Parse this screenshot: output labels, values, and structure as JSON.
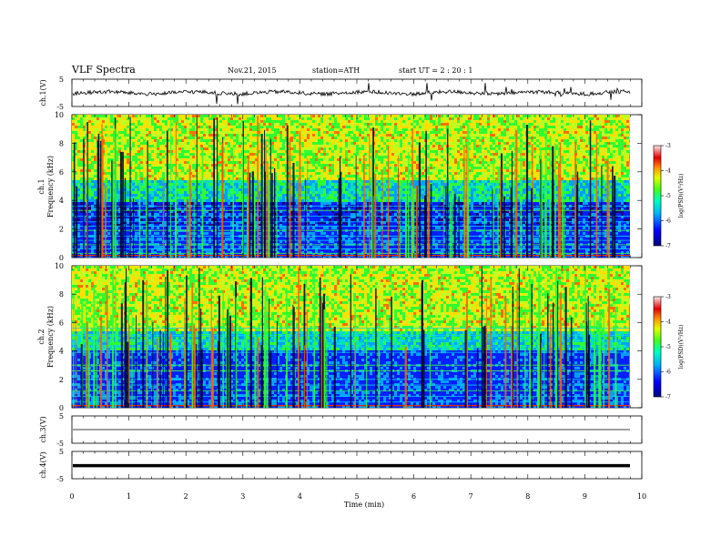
{
  "header": {
    "title": "VLF  Spectra",
    "date": "Nov.21, 2015",
    "station": "station=ATH",
    "start": "start  UT  =   2  : 20 : 1"
  },
  "chart_data": [
    {
      "type": "line",
      "panel": "ch1-waveform",
      "ylabel": "ch.1(V)",
      "ylim": [
        -5,
        5
      ],
      "yticks": [
        "5",
        "-5"
      ],
      "xlim": [
        0,
        10
      ],
      "baseline": 0,
      "color": "#000000"
    },
    {
      "type": "heatmap",
      "panel": "ch1-spectrogram",
      "ylabel": "ch.1",
      "ylabel2": "Frequency  (kHz)",
      "ylim": [
        0,
        10
      ],
      "yticks": [
        "0",
        "2",
        "4",
        "6",
        "8",
        "10"
      ],
      "xlim": [
        0,
        9.8
      ],
      "colorbar": {
        "label": "log(PSD)(V²/Hz)",
        "range": [
          -7,
          -3
        ],
        "ticks": [
          "-3",
          "-4",
          "-5",
          "-6",
          "-7"
        ]
      }
    },
    {
      "type": "heatmap",
      "panel": "ch2-spectrogram",
      "ylabel": "ch.2",
      "ylabel2": "Frequency  (kHz)",
      "ylim": [
        0,
        10
      ],
      "yticks": [
        "0",
        "2",
        "4",
        "6",
        "8",
        "10"
      ],
      "xlim": [
        0,
        9.8
      ],
      "colorbar": {
        "label": "log(PSD)(V²/Hz)",
        "range": [
          -7,
          -3
        ],
        "ticks": [
          "-3",
          "-4",
          "-5",
          "-6",
          "-7"
        ]
      }
    },
    {
      "type": "line",
      "panel": "ch3-waveform",
      "ylabel": "ch.3(V)",
      "ylim": [
        -5,
        5
      ],
      "yticks": [
        "5",
        "-5"
      ],
      "baseline": 0,
      "color": "#000000"
    },
    {
      "type": "line",
      "panel": "ch4-waveform",
      "ylabel": "ch.4(V)",
      "ylim": [
        -5,
        5
      ],
      "yticks": [
        "5",
        "-5"
      ],
      "baseline": -0.2,
      "color": "#000000"
    }
  ],
  "xaxis": {
    "label": "Time  (min)",
    "ticks": [
      "0",
      "1",
      "2",
      "3",
      "4",
      "5",
      "6",
      "7",
      "8",
      "9",
      "10"
    ],
    "range": [
      0,
      10
    ]
  },
  "colors": {
    "psd_scale": [
      "#1a0080",
      "#0020ff",
      "#00a0ff",
      "#00e0c0",
      "#30ff30",
      "#c0ff20",
      "#ffe000",
      "#ff7000",
      "#e00000",
      "#ffb0b0"
    ]
  }
}
